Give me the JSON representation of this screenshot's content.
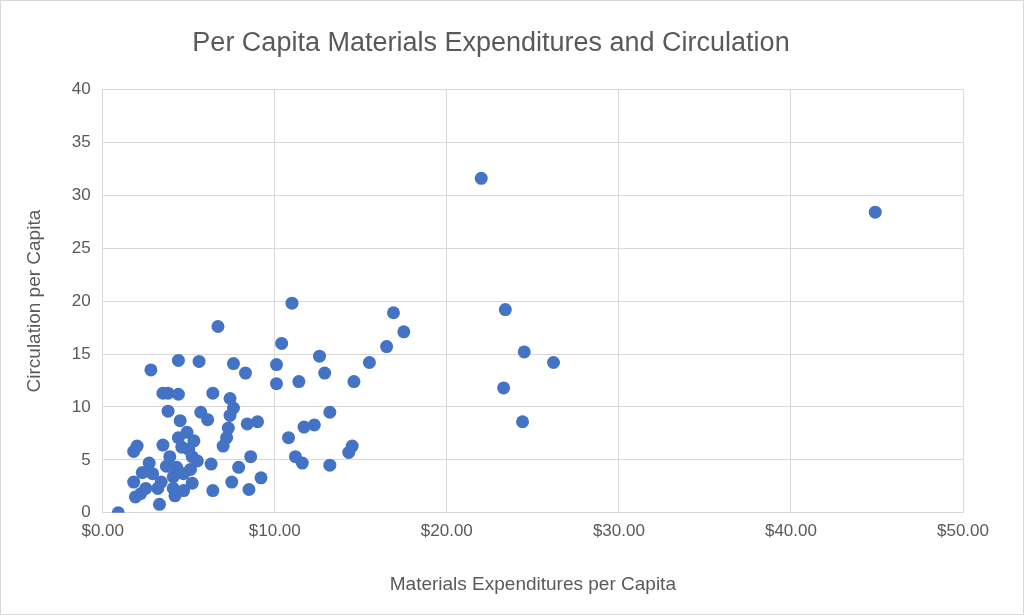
{
  "chart_data": {
    "type": "scatter",
    "title": "Per Capita Materials Expenditures and Circulation",
    "x_label": "Materials Expenditures per Capita",
    "y_label": "Circulation per Capita",
    "x": [
      44.9,
      22.0,
      23.4,
      24.5,
      26.2,
      23.3,
      24.4,
      17.5,
      16.9,
      16.5,
      15.5,
      14.6,
      14.5,
      14.3,
      13.2,
      13.2,
      12.9,
      12.6,
      12.3,
      11.7,
      11.6,
      11.2,
      11.4,
      11.0,
      10.8,
      10.4,
      10.1,
      10.1,
      8.3,
      9.0,
      8.4,
      8.6,
      8.5,
      9.2,
      7.9,
      7.6,
      7.6,
      7.4,
      7.3,
      7.4,
      7.2,
      7.0,
      7.5,
      6.7,
      6.4,
      6.3,
      6.4,
      5.6,
      5.7,
      6.1,
      5.2,
      5.3,
      4.9,
      4.4,
      4.4,
      4.5,
      4.6,
      4.3,
      4.7,
      4.2,
      3.8,
      3.5,
      3.8,
      3.5,
      3.9,
      3.4,
      3.3,
      2.8,
      2.9,
      2.5,
      2.3,
      2.0,
      1.8,
      1.9,
      1.8,
      0.9,
      4.1,
      5.1,
      5.5,
      4.7,
      4.1,
      5.0,
      4.4,
      3.2,
      3.7,
      2.2,
      2.7,
      5.2
    ],
    "values": [
      28.4,
      31.6,
      19.2,
      15.2,
      14.2,
      11.8,
      8.6,
      17.1,
      18.9,
      15.7,
      14.2,
      12.4,
      6.3,
      5.7,
      4.5,
      9.5,
      13.2,
      14.8,
      8.3,
      8.1,
      4.7,
      5.3,
      12.4,
      19.8,
      7.1,
      16.0,
      12.2,
      14.0,
      13.2,
      8.6,
      8.4,
      5.3,
      2.2,
      3.3,
      4.3,
      14.1,
      9.9,
      9.2,
      8.0,
      10.8,
      7.1,
      6.3,
      2.9,
      17.6,
      11.3,
      4.6,
      2.1,
      14.3,
      9.5,
      8.8,
      5.3,
      6.8,
      7.6,
      14.4,
      11.2,
      8.7,
      6.2,
      4.3,
      2.1,
      1.6,
      11.3,
      11.3,
      9.6,
      6.4,
      5.3,
      2.9,
      0.8,
      13.5,
      3.7,
      2.3,
      3.8,
      6.3,
      5.8,
      1.5,
      2.9,
      0.0,
      3.4,
      4.1,
      4.9,
      3.7,
      2.3,
      6.0,
      7.1,
      2.3,
      4.4,
      1.8,
      4.7,
      2.8
    ],
    "color": "#4472c4",
    "marker": "circle",
    "xlim": [
      0,
      50
    ],
    "xticks": [
      {
        "value": 0,
        "label": "$0.00"
      },
      {
        "value": 10,
        "label": "$10.00"
      },
      {
        "value": 20,
        "label": "$20.00"
      },
      {
        "value": 30,
        "label": "$30.00"
      },
      {
        "value": 40,
        "label": "$40.00"
      },
      {
        "value": 50,
        "label": "$50.00"
      }
    ],
    "ylim": [
      0,
      40
    ],
    "yticks": [
      0,
      5,
      10,
      15,
      20,
      25,
      30,
      35,
      40
    ],
    "grid": true
  }
}
